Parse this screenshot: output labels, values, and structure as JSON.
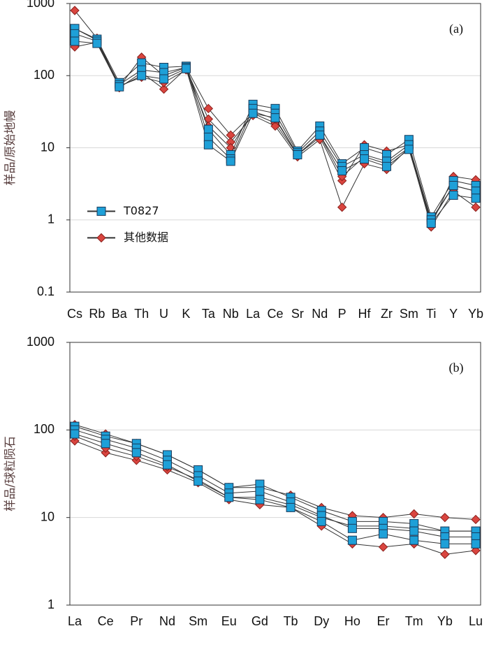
{
  "chart_data": [
    {
      "type": "line",
      "annotation": "(a)",
      "ylabel": "样品/原始地幔",
      "log_y": true,
      "grid": true,
      "legend": "center-left",
      "categories": [
        "Cs",
        "Rb",
        "Ba",
        "Th",
        "U",
        "K",
        "Ta",
        "Nb",
        "La",
        "Ce",
        "Sr",
        "Nd",
        "P",
        "Hf",
        "Zr",
        "Sm",
        "Ti",
        "Y",
        "Yb"
      ],
      "ylim": [
        0.1,
        1000
      ],
      "yticks": [
        0.1,
        1,
        10,
        100,
        1000
      ],
      "series": [
        {
          "name": "T0827",
          "color": "#1ea0d8",
          "marker": "square",
          "samples": [
            [
              450,
              320,
              80,
              150,
              130,
              135,
              18,
              8,
              40,
              35,
              9,
              20,
              6,
              10,
              8,
              13,
              1.1,
              3.5,
              3
            ],
            [
              380,
              300,
              75,
              120,
              110,
              130,
              14,
              7,
              35,
              30,
              8.5,
              17,
              5.5,
              8,
              6.5,
              11,
              1.0,
              3,
              2.5
            ],
            [
              300,
              280,
              70,
              100,
              90,
              125,
              11,
              6.5,
              30,
              26,
              8,
              15,
              4.8,
              7,
              5.5,
              9.5,
              0.9,
              2.2,
              2
            ]
          ]
        },
        {
          "name": "其他数据",
          "color": "#d9453f",
          "marker": "diamond",
          "samples": [
            [
              800,
              330,
              70,
              180,
              100,
              130,
              35,
              15,
              30,
              22,
              8,
              14,
              3.5,
              11,
              9,
              11,
              0.85,
              4,
              3.6
            ],
            [
              450,
              310,
              68,
              110,
              65,
              125,
              25,
              12,
              28,
              20,
              7.5,
              13,
              1.5,
              6,
              5,
              10,
              0.8,
              2.5,
              1.5
            ],
            [
              250,
              290,
              72,
              95,
              80,
              120,
              20,
              10,
              32,
              25,
              8,
              15,
              4,
              7.5,
              6,
              10,
              0.95,
              3,
              2.5
            ]
          ]
        }
      ]
    },
    {
      "type": "line",
      "annotation": "(b)",
      "ylabel": "样品/球粒陨石",
      "log_y": true,
      "grid": true,
      "categories": [
        "La",
        "Ce",
        "Pr",
        "Nd",
        "Sm",
        "Eu",
        "Gd",
        "Tb",
        "Dy",
        "Ho",
        "Er",
        "Tm",
        "Yb",
        "Lu"
      ],
      "ylim": [
        1,
        1000
      ],
      "yticks": [
        1,
        10,
        100,
        1000
      ],
      "series": [
        {
          "name": "T0827",
          "color": "#1ea0d8",
          "marker": "square",
          "samples": [
            [
              110,
              85,
              70,
              52,
              35,
              22,
              24,
              17,
              12,
              9,
              9,
              8.5,
              7,
              7
            ],
            [
              100,
              78,
              62,
              45,
              30,
              19,
              20,
              15,
              10.5,
              7.5,
              7.5,
              7,
              6,
              6
            ],
            [
              90,
              70,
              55,
              40,
              26,
              17,
              16,
              13,
              9,
              5.5,
              6.5,
              5.5,
              5,
              5
            ]
          ]
        },
        {
          "name": "其他数据",
          "color": "#d9453f",
          "marker": "diamond",
          "samples": [
            [
              75,
              55,
              45,
              35,
              25,
              16,
              14,
              13,
              8,
              5,
              4.6,
              5,
              3.8,
              4.2
            ],
            [
              115,
              90,
              70,
              52,
              35,
              22,
              22,
              18,
              13,
              10.5,
              10,
              11,
              10,
              9.5
            ],
            [
              85,
              62,
              50,
              38,
              27,
              17,
              17,
              14,
              10,
              8,
              8,
              7.5,
              7,
              7
            ]
          ]
        }
      ]
    }
  ]
}
